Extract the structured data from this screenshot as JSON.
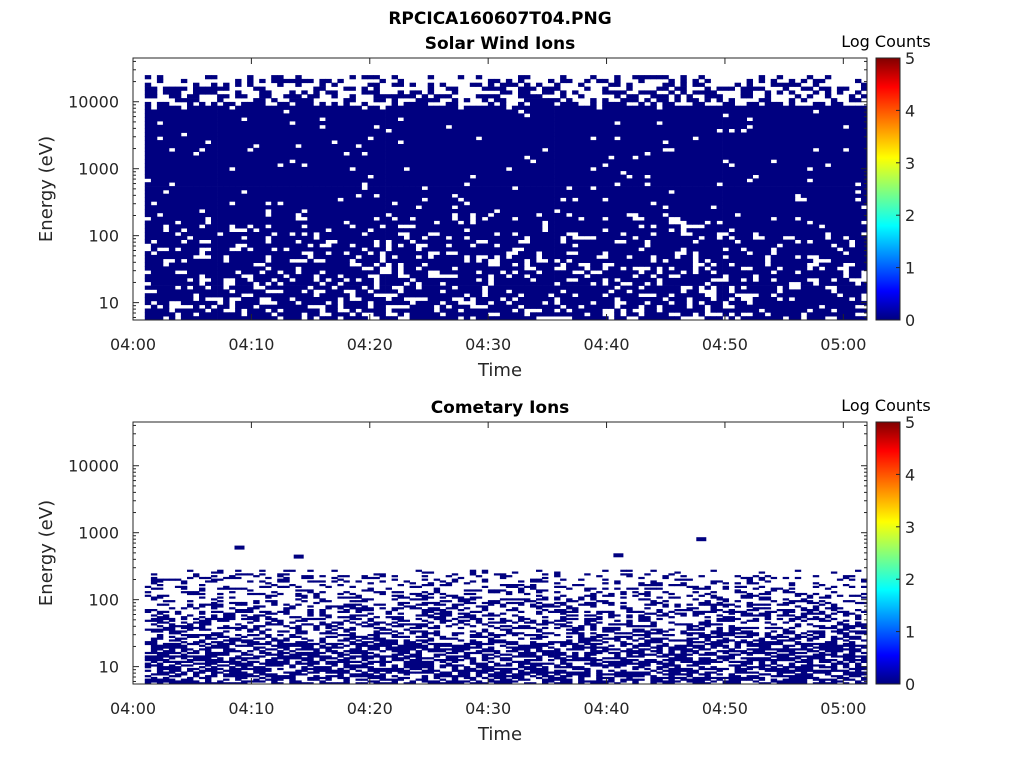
{
  "figure_title": "RPCICA160607T04.PNG",
  "chart_data": [
    {
      "type": "heatmap",
      "title": "Solar Wind Ions",
      "xlabel": "Time",
      "ylabel": "Energy (eV)",
      "x_tick_labels": [
        "04:00",
        "04:10",
        "04:20",
        "04:30",
        "04:40",
        "04:50",
        "05:00"
      ],
      "y_tick_labels": [
        "10",
        "100",
        "1000",
        "10000"
      ],
      "y_scale": "log",
      "ylim": [
        5.5,
        45000
      ],
      "colorbar": {
        "label": "Log Counts",
        "range": [
          0,
          5
        ],
        "tick_labels": [
          "0",
          "1",
          "2",
          "3",
          "4",
          "5"
        ]
      },
      "data_time_range": [
        "04:01",
        "05:02"
      ],
      "energy_fill_top": 25000,
      "dense_band_eV": [
        200,
        8000
      ],
      "dominant_log_counts": 0,
      "grid": false,
      "legend": "colorbar-right"
    },
    {
      "type": "heatmap",
      "title": "Cometary Ions",
      "xlabel": "Time",
      "ylabel": "Energy (eV)",
      "x_tick_labels": [
        "04:00",
        "04:10",
        "04:20",
        "04:30",
        "04:40",
        "04:50",
        "05:00"
      ],
      "y_tick_labels": [
        "10",
        "100",
        "1000",
        "10000"
      ],
      "y_scale": "log",
      "ylim": [
        5.5,
        45000
      ],
      "colorbar": {
        "label": "Log Counts",
        "range": [
          0,
          5
        ],
        "tick_labels": [
          "0",
          "1",
          "2",
          "3",
          "4",
          "5"
        ]
      },
      "data_time_range": [
        "04:01",
        "05:02"
      ],
      "energy_fill_top": 280,
      "isolated_points": [
        {
          "time": "04:09",
          "energy": 600
        },
        {
          "time": "04:14",
          "energy": 440
        },
        {
          "time": "04:41",
          "energy": 460
        },
        {
          "time": "04:48",
          "energy": 800
        }
      ],
      "dominant_log_counts": 0,
      "grid": false,
      "legend": "colorbar-right"
    }
  ],
  "colors": {
    "low": "#000080",
    "colormap": [
      "#000080",
      "#0000ff",
      "#00ffff",
      "#ffff00",
      "#ff0000",
      "#800000"
    ],
    "axis": "#262626"
  }
}
